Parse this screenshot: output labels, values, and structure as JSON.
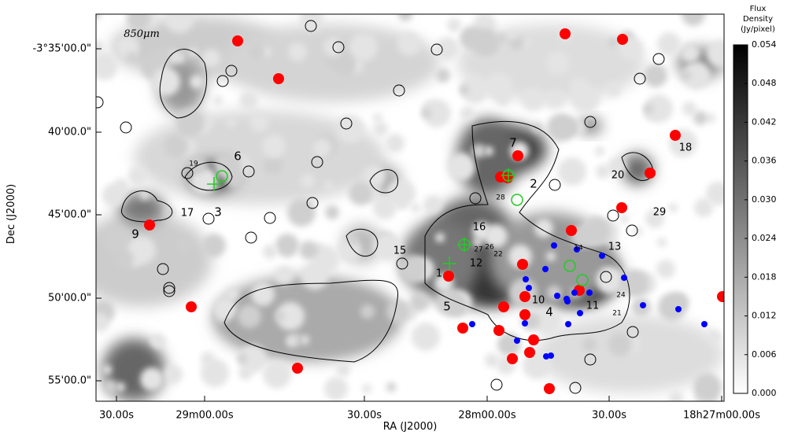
{
  "figure": {
    "annotation": "850μm",
    "x_axis": {
      "label": "RA (J2000)",
      "ticks": [
        "30.00s",
        "29m00.00s",
        "30.00s",
        "28m00.00s",
        "30.00s",
        "18h27m00.00s"
      ]
    },
    "y_axis": {
      "label": "Dec (J2000)",
      "ticks": [
        "-3°35'00.0\"",
        "40'00.0\"",
        "45'00.0\"",
        "50'00.0\"",
        "55'00.0\""
      ]
    },
    "colorbar": {
      "title": [
        "Flux",
        "Density",
        "(Jy/pixel)"
      ],
      "ticks": [
        "0.054",
        "0.048",
        "0.042",
        "0.036",
        "0.030",
        "0.024",
        "0.018",
        "0.012",
        "0.006",
        "0.000"
      ]
    },
    "sources": [
      "6",
      "19",
      "3",
      "9",
      "17",
      "7",
      "2",
      "28",
      "16",
      "15",
      "27",
      "26",
      "22",
      "12",
      "1",
      "5",
      "10",
      "4",
      "11",
      "13",
      "14",
      "24",
      "21",
      "18",
      "20",
      "29"
    ]
  }
}
